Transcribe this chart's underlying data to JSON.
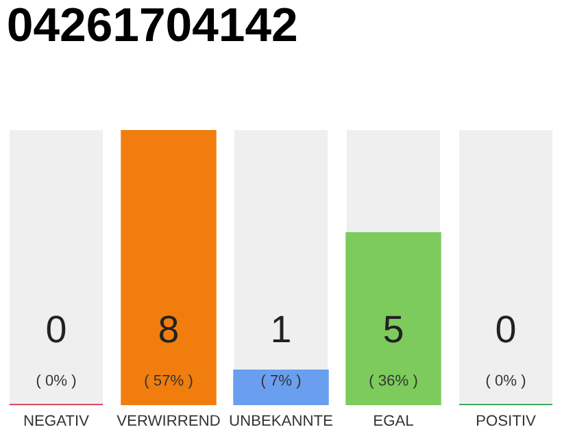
{
  "chart_data": {
    "type": "bar",
    "title": "04261704142",
    "categories": [
      "NEGATIV",
      "VERWIRREND",
      "UNBEKANNTE",
      "EGAL",
      "POSITIV"
    ],
    "values": [
      0,
      8,
      1,
      5,
      0
    ],
    "colors": [
      "#d9304a",
      "#f07d0e",
      "#6a9ff0",
      "#7ccb5c",
      "#21a04a"
    ],
    "data_labels": true,
    "annotations": [
      "( 0% )",
      "( 57% )",
      "( 7% )",
      "( 36% )",
      "( 0% )"
    ],
    "ylim": [
      0,
      8
    ],
    "tick_labels": "x",
    "grid": false,
    "legend": false
  }
}
